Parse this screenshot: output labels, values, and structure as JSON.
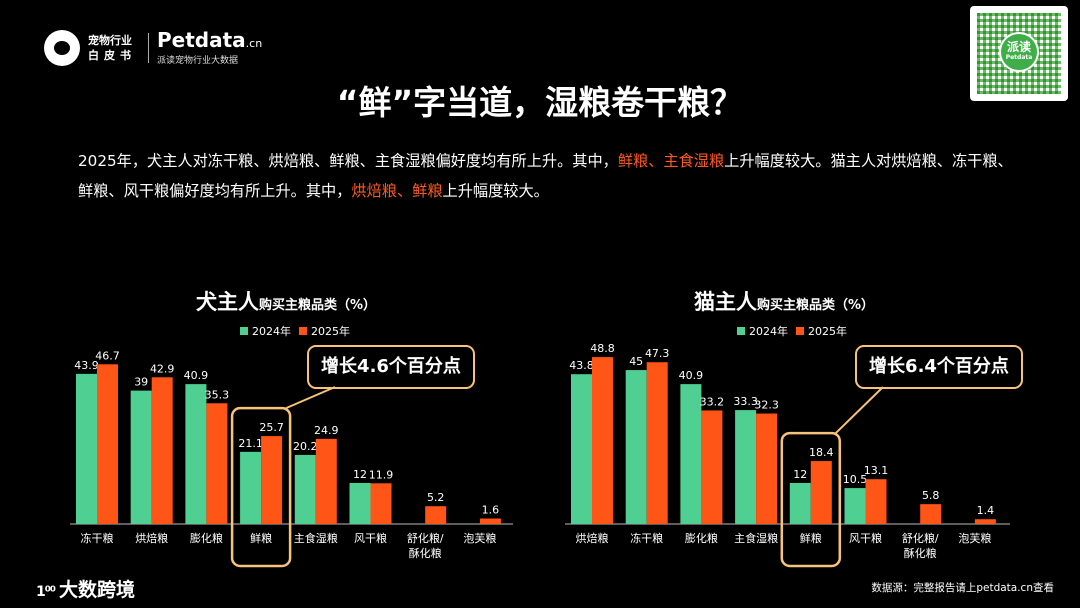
{
  "brand": {
    "whitepaper_line1": "宠物行业",
    "whitepaper_line2": "白皮书",
    "name_main": "Petdata",
    "name_suffix": ".cn",
    "subtitle": "派读宠物行业大数据"
  },
  "qr": {
    "center_label": "派读",
    "center_sub": "Petdata"
  },
  "title": "“鲜”字当道，湿粮卷干粮？",
  "intro": {
    "p1_a": "2025年，犬主人对冻干粮、烘焙粮、鲜粮、主食湿粮偏好度均有所上升。其中，",
    "p1_hl": "鲜粮、主食湿粮",
    "p1_b": "上升幅度较大。猫主人对烘焙粮、冻干粮、鲜粮、风干粮偏好度均有所上升。其中，",
    "p1_hl2": "烘焙粮、鲜粮",
    "p1_c": "上升幅度较大。"
  },
  "colors": {
    "y2024": "#4fd092",
    "y2025": "#ff5516",
    "highlight": "#f7c27a"
  },
  "chart_data": [
    {
      "type": "bar",
      "title_big": "犬主人",
      "title_small": "购买主粮品类（%）",
      "legend": [
        "2024年",
        "2025年"
      ],
      "categories": [
        "冻干粮",
        "烘焙粮",
        "膨化粮",
        "鲜粮",
        "主食湿粮",
        "风干粮",
        "舒化粮/\n酥化粮",
        "泡芙粮"
      ],
      "series": [
        {
          "name": "2024年",
          "values": [
            43.9,
            39,
            40.9,
            21.1,
            20.2,
            12,
            null,
            null
          ]
        },
        {
          "name": "2025年",
          "values": [
            46.7,
            42.9,
            35.3,
            25.7,
            24.9,
            11.9,
            5.2,
            1.6
          ]
        }
      ],
      "highlight_category": "鲜粮",
      "callout": "增长4.6个百分点",
      "ylim": [
        0,
        50
      ]
    },
    {
      "type": "bar",
      "title_big": "猫主人",
      "title_small": "购买主粮品类（%）",
      "legend": [
        "2024年",
        "2025年"
      ],
      "categories": [
        "烘焙粮",
        "冻干粮",
        "膨化粮",
        "主食湿粮",
        "鲜粮",
        "风干粮",
        "舒化粮/\n酥化粮",
        "泡芙粮"
      ],
      "series": [
        {
          "name": "2024年",
          "values": [
            43.8,
            45,
            40.9,
            33.3,
            12,
            10.5,
            null,
            null
          ]
        },
        {
          "name": "2025年",
          "values": [
            48.8,
            47.3,
            33.2,
            32.3,
            18.4,
            13.1,
            5.8,
            1.4
          ]
        }
      ],
      "highlight_category": "鲜粮",
      "callout": "增长6.4个百分点",
      "ylim": [
        0,
        50
      ]
    }
  ],
  "footer": {
    "logo_mark": "1⁰⁰",
    "logo_text": "大数跨境",
    "source": "数据源：完整报告请上petdata.cn查看"
  }
}
